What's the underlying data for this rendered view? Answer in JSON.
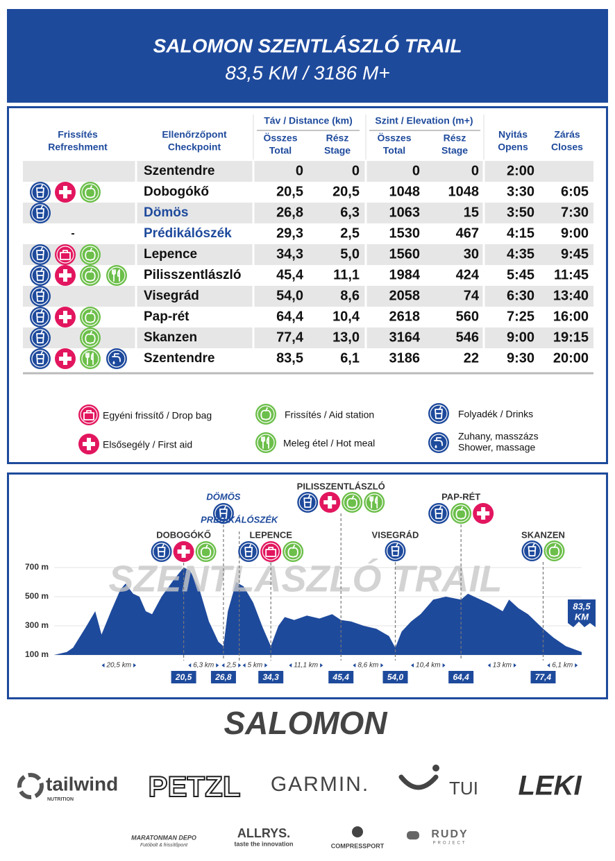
{
  "header": {
    "title": "SALOMON SZENTLÁSZLÓ TRAIL",
    "subtitle": "83,5 KM / 3186 M+"
  },
  "table": {
    "refreshment_header": [
      "Frissítés",
      "Refreshment"
    ],
    "checkpoint_header": [
      "Ellenőrzőpont",
      "Checkpoint"
    ],
    "distance_header": "Táv / Distance (km)",
    "elevation_header": "Szint / Elevation (m+)",
    "distance_total_header": [
      "Összes",
      "Total"
    ],
    "distance_stage_header": [
      "Rész",
      "Stage"
    ],
    "elevation_total_header": [
      "Összes",
      "Total"
    ],
    "elevation_stage_header": [
      "Rész",
      "Stage"
    ],
    "opens_header": [
      "Nyitás",
      "Opens"
    ],
    "closes_header": [
      "Zárás",
      "Closes"
    ],
    "rows": [
      {
        "checkpoint": "Szentendre",
        "distance": [
          "0",
          "0"
        ],
        "elevation": [
          "0",
          "0"
        ],
        "opens": "2:00"
      },
      {
        "checkpoint": "Dobogókő",
        "distance": [
          "20,5",
          "20,5"
        ],
        "elevation": [
          "1048",
          "1048"
        ],
        "opens": "3:30",
        "closes": "6:05"
      },
      {
        "checkpoint": "Dömös",
        "distance": [
          "26,8",
          "6,3"
        ],
        "elevation": [
          "1063",
          "15"
        ],
        "opens": "3:50",
        "closes": "7:30"
      },
      {
        "refreshment": "-",
        "checkpoint": "Prédikálószék",
        "distance": [
          "29,3",
          "2,5"
        ],
        "elevation": [
          "1530",
          "467"
        ],
        "opens": "4:15",
        "closes": "9:00"
      },
      {
        "checkpoint": "Lepence",
        "distance": [
          "34,3",
          "5,0"
        ],
        "elevation": [
          "1560",
          "30"
        ],
        "opens": "4:35",
        "closes": "9:45"
      },
      {
        "checkpoint": "Pilisszentlászló",
        "distance": [
          "45,4",
          "11,1"
        ],
        "elevation": [
          "1984",
          "424"
        ],
        "opens": "5:45",
        "closes": "11:45"
      },
      {
        "checkpoint": "Visegrád",
        "distance": [
          "54,0",
          "8,6"
        ],
        "elevation": [
          "2058",
          "74"
        ],
        "opens": "6:30",
        "closes": "13:40"
      },
      {
        "checkpoint": "Pap-rét",
        "distance": [
          "64,4",
          "10,4"
        ],
        "elevation": [
          "2618",
          "560"
        ],
        "opens": "7:25",
        "closes": "16:00"
      },
      {
        "checkpoint": "Skanzen",
        "distance": [
          "77,4",
          "13,0"
        ],
        "elevation": [
          "3164",
          "546"
        ],
        "opens": "9:00",
        "closes": "19:15"
      },
      {
        "checkpoint": "Szentendre",
        "distance": [
          "83,5",
          "6,1"
        ],
        "elevation": [
          "3186",
          "22"
        ],
        "opens": "9:30",
        "closes": "20:00"
      }
    ]
  },
  "legend": [
    [
      "Egyéni frissítő / Drop bag"
    ],
    [
      "Elsősegély / First aid"
    ],
    [
      "Frissítés / Aid station"
    ],
    [
      "Meleg étel / Hot meal"
    ],
    [
      "Folyadék / Drinks"
    ],
    [
      "Zuhany, masszázs",
      "Shower, massage"
    ]
  ],
  "elevation_profile": {
    "type": "area",
    "color": "#1e4a9c",
    "watermark": "SZENTLÁSZLÓ TRAIL",
    "x": [
      0,
      2,
      3,
      5,
      6.5,
      7.5,
      9,
      10.5,
      11.3,
      12.5,
      13.5,
      14.5,
      15.5,
      17,
      19,
      20.5,
      21.5,
      23,
      24.5,
      26,
      26.8,
      27.5,
      28.8,
      30,
      31.5,
      33,
      34.3,
      35.5,
      36.5,
      38,
      40,
      42,
      44,
      45.4,
      47,
      49,
      51,
      53,
      54,
      55,
      56.5,
      58,
      60,
      62,
      64.4,
      65.5,
      67,
      69,
      71,
      72,
      73.5,
      75,
      77.4,
      79,
      81,
      83.5
    ],
    "values": [
      100,
      120,
      150,
      290,
      400,
      240,
      400,
      550,
      590,
      520,
      500,
      400,
      380,
      500,
      620,
      700,
      680,
      550,
      330,
      190,
      160,
      400,
      600,
      570,
      460,
      290,
      160,
      300,
      360,
      340,
      370,
      350,
      380,
      340,
      330,
      300,
      280,
      230,
      150,
      260,
      330,
      380,
      480,
      500,
      480,
      520,
      490,
      450,
      400,
      480,
      420,
      380,
      280,
      220,
      160,
      120
    ],
    "xlim": [
      0,
      83.5
    ],
    "ylim": [
      100,
      700
    ],
    "yticks": [
      {
        "value": 700,
        "label": "700 m"
      },
      {
        "value": 500,
        "label": "500 m"
      },
      {
        "value": 300,
        "label": "300 m"
      },
      {
        "value": 100,
        "label": "100 m"
      }
    ],
    "grid": true,
    "markers": {
      "names": [
        "DOBOGÓKŐ",
        "DÖMÖS",
        "PRÉDIKÁLÓSZÉK",
        "LEPENCE",
        "PILISSZENTLÁSZLÓ",
        "VISEGRÁD",
        "PAP-RÉT",
        "SKANZEN"
      ],
      "x": [
        20.5,
        26.8,
        29.3,
        34.3,
        45.4,
        54.0,
        64.4,
        77.4
      ],
      "x_labels": [
        "20,5",
        "26,8",
        null,
        "34,3",
        "45,4",
        "54,0",
        "64,4",
        "77,4"
      ]
    },
    "segments": [
      "20,5 km",
      "6,3 km",
      "2,5",
      "5 km",
      "11,1 km",
      "8,6 km",
      "10,4 km",
      "13 km",
      "6,1 km"
    ],
    "end_label": [
      "83,5",
      "KM"
    ]
  },
  "sponsors": {
    "main": "SALOMON",
    "tailwind": "tailwind",
    "tailwind_sub": "NUTRITION",
    "petzl": "PETZL",
    "garmin": "GARMIN.",
    "tui": "TUI",
    "leki": "LEKI",
    "maratonman": "MARATONMAN DEPO",
    "maratonman_sub": "Futóbolt & frissítőpont",
    "allrys": "ALLRYS.",
    "allrys_sub": "taste the innovation",
    "compressport": "COMPRESSPORT",
    "rudy": "RUDY",
    "rudy_sub": "PROJECT"
  }
}
